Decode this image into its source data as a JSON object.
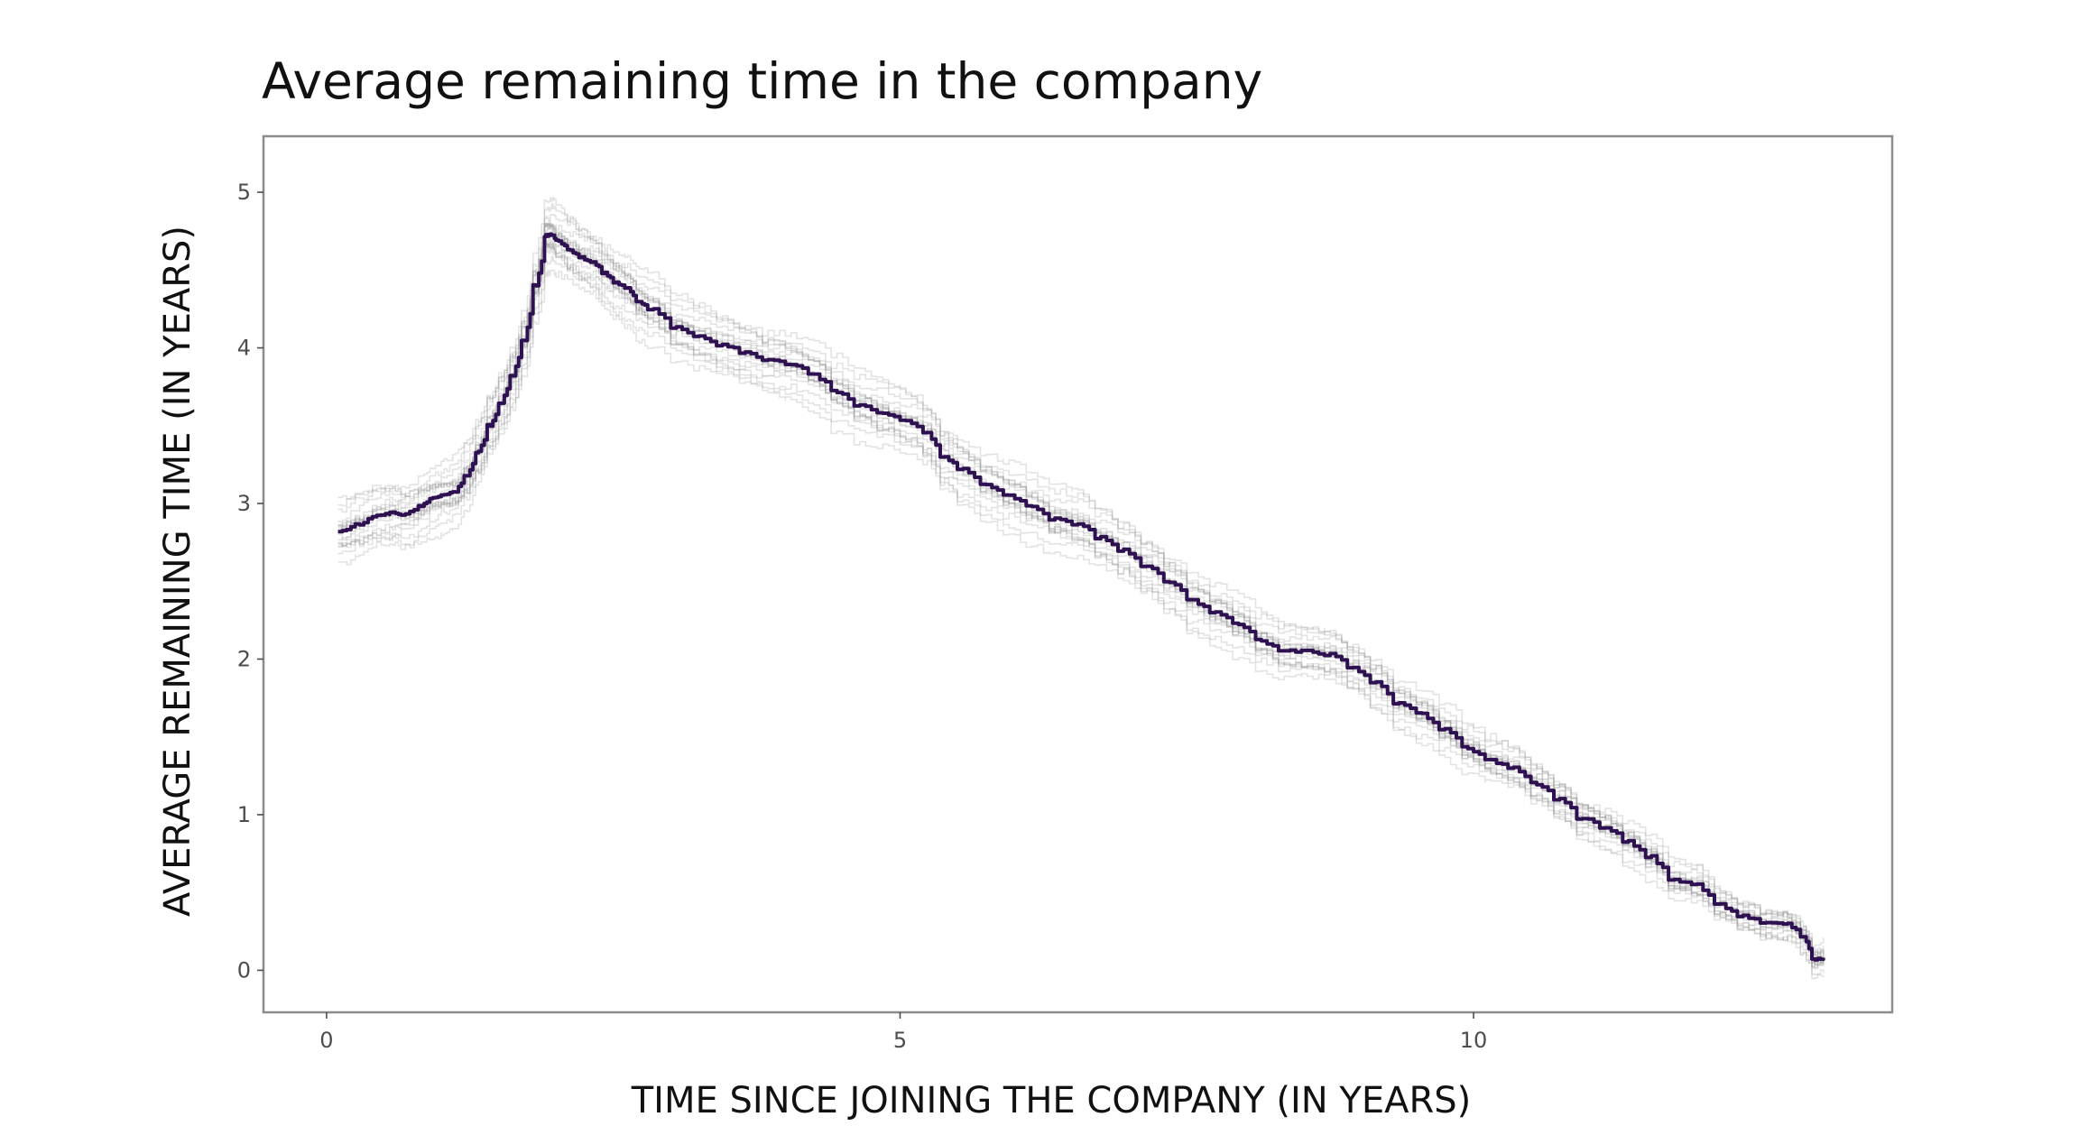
{
  "chart_data": {
    "type": "line",
    "title": "Average remaining time in the company",
    "xlabel": "TIME SINCE JOINING THE COMPANY (IN YEARS)",
    "ylabel": "AVERAGE REMAINING TIME (IN YEARS)",
    "xlim": [
      -0.55,
      13.65
    ],
    "ylim": [
      -0.27,
      5.36
    ],
    "xticks": [
      0,
      5,
      10
    ],
    "xtick_labels": [
      "0",
      "5",
      "10"
    ],
    "yticks": [
      0,
      1,
      2,
      3,
      4,
      5
    ],
    "ytick_labels": [
      "0",
      "1",
      "2",
      "3",
      "4",
      "5"
    ],
    "grid": false,
    "legend": "none",
    "colors": {
      "main": "#2d1150",
      "bootstrap": "#9a9a9a",
      "frame": "#8c8c8c"
    },
    "series": [
      {
        "x": [
          0.1,
          0.25,
          0.4,
          0.55,
          0.65,
          0.8,
          0.9,
          1.0,
          1.1,
          1.2,
          1.3,
          1.4,
          1.5,
          1.6,
          1.7,
          1.8,
          1.9,
          1.95,
          2.0,
          2.1,
          2.2,
          2.3,
          2.4,
          2.5,
          2.6,
          2.7,
          2.8,
          3.0,
          3.2,
          3.4,
          3.6,
          3.8,
          4.0,
          4.2,
          4.4,
          4.6,
          4.8,
          5.0,
          5.2,
          5.35,
          5.5,
          5.7,
          5.9,
          6.1,
          6.3,
          6.5,
          6.7,
          6.9,
          7.1,
          7.3,
          7.5,
          7.7,
          7.9,
          8.1,
          8.3,
          8.5,
          8.7,
          8.9,
          9.1,
          9.3,
          9.5,
          9.7,
          9.9,
          10.1,
          10.3,
          10.5,
          10.7,
          10.9,
          11.1,
          11.3,
          11.5,
          11.7,
          11.9,
          12.1,
          12.3,
          12.5,
          12.7,
          12.85,
          12.95,
          13.05
        ],
        "y": [
          2.82,
          2.87,
          2.92,
          2.94,
          2.93,
          2.98,
          3.03,
          3.05,
          3.08,
          3.18,
          3.33,
          3.5,
          3.65,
          3.82,
          4.05,
          4.4,
          4.72,
          4.73,
          4.69,
          4.63,
          4.58,
          4.55,
          4.48,
          4.42,
          4.38,
          4.3,
          4.25,
          4.13,
          4.07,
          4.02,
          3.97,
          3.92,
          3.9,
          3.83,
          3.72,
          3.63,
          3.58,
          3.53,
          3.45,
          3.3,
          3.22,
          3.12,
          3.05,
          2.98,
          2.9,
          2.87,
          2.78,
          2.7,
          2.6,
          2.5,
          2.38,
          2.3,
          2.23,
          2.12,
          2.05,
          2.05,
          2.03,
          1.95,
          1.85,
          1.72,
          1.65,
          1.55,
          1.43,
          1.35,
          1.3,
          1.2,
          1.1,
          0.98,
          0.92,
          0.83,
          0.73,
          0.58,
          0.55,
          0.42,
          0.35,
          0.3,
          0.3,
          0.22,
          0.07,
          0.08
        ]
      }
    ]
  }
}
